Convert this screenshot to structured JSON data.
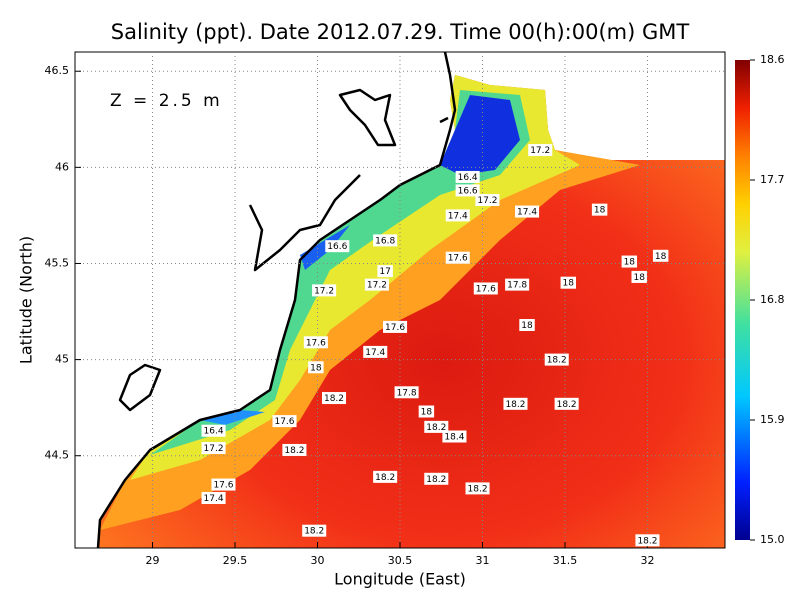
{
  "chart_data": {
    "type": "contour",
    "title": "Salinity (ppt). Date 2012.07.29. Time 00(h):00(m) GMT",
    "annotation": "Z = 2.5 m",
    "x_label": "Longitude (East)",
    "y_label": "Latitude (North)",
    "xlim": [
      28.53,
      32.47
    ],
    "xticks": [
      29,
      29.5,
      30,
      30.5,
      31,
      31.5,
      32
    ],
    "ylim": [
      44.02,
      46.6
    ],
    "yticks": [
      44.5,
      45,
      45.5,
      46,
      46.5
    ],
    "grid": true,
    "colorbar_lim": [
      15,
      18.6
    ],
    "colorbar_ticks": [
      {
        "value": 15,
        "label": "15.0"
      },
      15.9,
      16.8,
      17.7,
      18.6
    ],
    "contour_labels": [
      {
        "x": 31.35,
        "y": 46.09,
        "value": 17.2
      },
      {
        "x": 30.91,
        "y": 45.95,
        "value": 16.4
      },
      {
        "x": 30.91,
        "y": 45.88,
        "value": 16.6
      },
      {
        "x": 31.03,
        "y": 45.83,
        "value": 17.2
      },
      {
        "x": 31.27,
        "y": 45.77,
        "value": 17.4
      },
      {
        "x": 31.71,
        "y": 45.78,
        "value": 18
      },
      {
        "x": 30.85,
        "y": 45.75,
        "value": 17.4
      },
      {
        "x": 30.41,
        "y": 45.62,
        "value": 16.8
      },
      {
        "x": 30.12,
        "y": 45.59,
        "value": 16.6
      },
      {
        "x": 30.41,
        "y": 45.46,
        "value": 17
      },
      {
        "x": 30.36,
        "y": 45.39,
        "value": 17.2
      },
      {
        "x": 30.85,
        "y": 45.53,
        "value": 17.6
      },
      {
        "x": 30.04,
        "y": 45.36,
        "value": 17.2
      },
      {
        "x": 31.02,
        "y": 45.37,
        "value": 17.6
      },
      {
        "x": 31.21,
        "y": 45.39,
        "value": 17.8
      },
      {
        "x": 31.52,
        "y": 45.4,
        "value": 18
      },
      {
        "x": 31.89,
        "y": 45.51,
        "value": 18
      },
      {
        "x": 32.08,
        "y": 45.54,
        "value": 18
      },
      {
        "x": 31.95,
        "y": 45.43,
        "value": 18
      },
      {
        "x": 31.27,
        "y": 45.18,
        "value": 18
      },
      {
        "x": 30.47,
        "y": 45.17,
        "value": 17.6
      },
      {
        "x": 29.99,
        "y": 45.09,
        "value": 17.6
      },
      {
        "x": 30.35,
        "y": 45.04,
        "value": 17.4
      },
      {
        "x": 29.99,
        "y": 44.96,
        "value": 18
      },
      {
        "x": 31.45,
        "y": 45.0,
        "value": 18.2
      },
      {
        "x": 30.54,
        "y": 44.83,
        "value": 17.8
      },
      {
        "x": 30.1,
        "y": 44.8,
        "value": 18.2
      },
      {
        "x": 31.2,
        "y": 44.77,
        "value": 18.2
      },
      {
        "x": 31.51,
        "y": 44.77,
        "value": 18.2
      },
      {
        "x": 30.66,
        "y": 44.73,
        "value": 18
      },
      {
        "x": 29.8,
        "y": 44.68,
        "value": 17.6
      },
      {
        "x": 30.72,
        "y": 44.65,
        "value": 18.2
      },
      {
        "x": 30.83,
        "y": 44.6,
        "value": 18.4
      },
      {
        "x": 29.37,
        "y": 44.63,
        "value": 16.4
      },
      {
        "x": 29.37,
        "y": 44.54,
        "value": 17.2
      },
      {
        "x": 29.86,
        "y": 44.53,
        "value": 18.2
      },
      {
        "x": 30.41,
        "y": 44.39,
        "value": 18.2
      },
      {
        "x": 30.72,
        "y": 44.38,
        "value": 18.2
      },
      {
        "x": 30.97,
        "y": 44.33,
        "value": 18.2
      },
      {
        "x": 29.43,
        "y": 44.35,
        "value": 17.6
      },
      {
        "x": 29.37,
        "y": 44.28,
        "value": 17.4
      },
      {
        "x": 29.98,
        "y": 44.11,
        "value": 18.2
      },
      {
        "x": 32.0,
        "y": 44.06,
        "value": 18.2
      }
    ]
  }
}
